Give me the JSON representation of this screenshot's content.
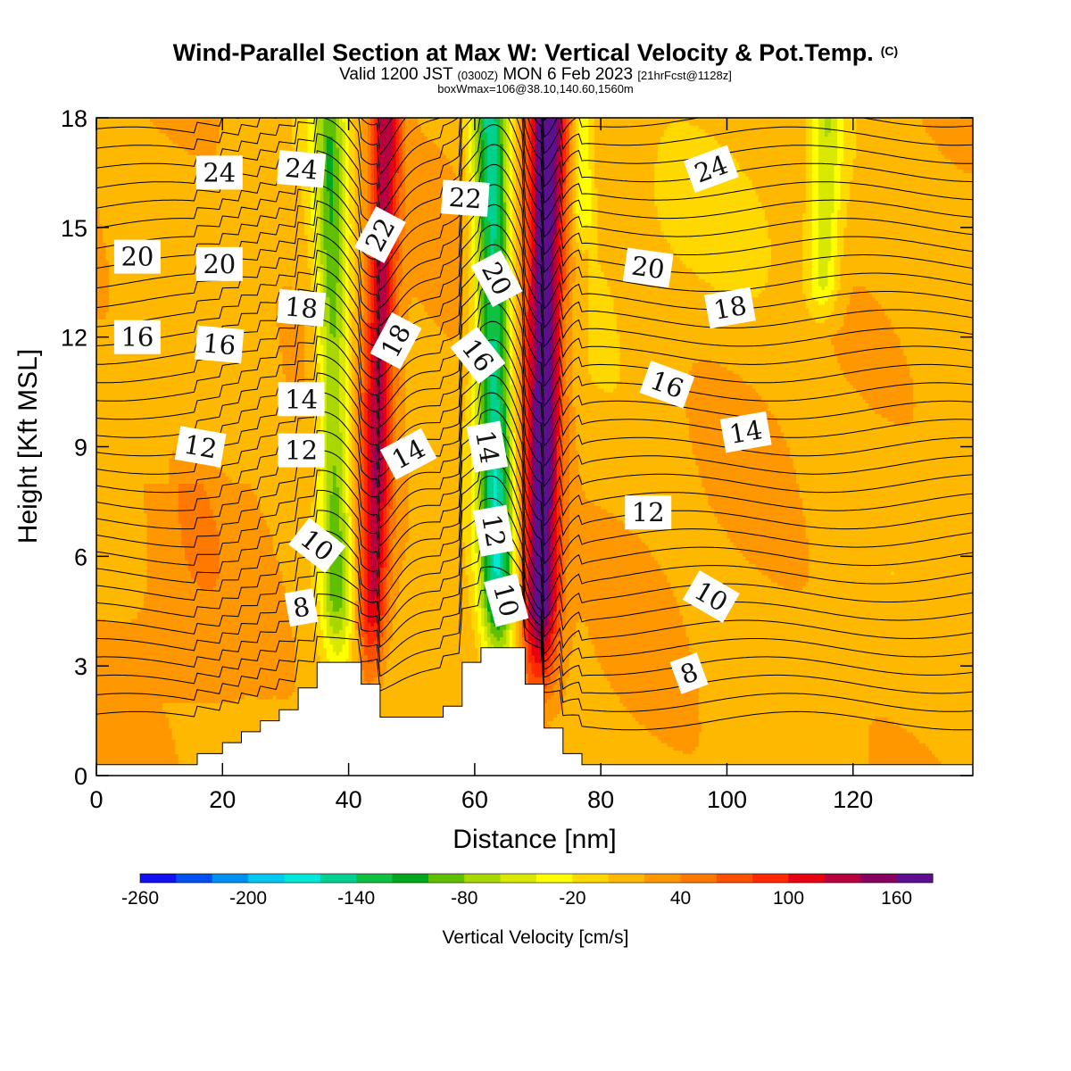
{
  "title": {
    "main": "Wind-Parallel Section at Max W: Vertical Velocity & Pot.Temp.",
    "mark": "(C)",
    "valid_prefix": "Valid 1200 JST",
    "utc": "(0300Z)",
    "date": "MON 6 Feb 2023",
    "forecast": "[21hrFcst@1128z]",
    "box": "boxWmax=106@38.10,140.60,1560m"
  },
  "chart_data": {
    "type": "heatmap",
    "xlabel": "Distance [nm]",
    "ylabel": "Height [Kft MSL]",
    "xlim": [
      0,
      139
    ],
    "ylim": [
      0,
      18
    ],
    "xticks": [
      0,
      20,
      40,
      60,
      80,
      100,
      120
    ],
    "yticks": [
      0,
      3,
      6,
      9,
      12,
      15,
      18
    ],
    "colorbar": {
      "title": "Vertical Velocity [cm/s]",
      "labels": [
        "-260",
        "-200",
        "-140",
        "-80",
        "-20",
        "40",
        "100",
        "160"
      ],
      "label_values": [
        -260,
        -200,
        -140,
        -80,
        -20,
        40,
        100,
        160
      ],
      "min": -260,
      "max": 180,
      "step": 20,
      "colors": [
        "#1010f0",
        "#0050f0",
        "#0090f0",
        "#00c8f0",
        "#00e8d8",
        "#00d090",
        "#10c040",
        "#00a820",
        "#60c000",
        "#a8d800",
        "#d8e800",
        "#ffff00",
        "#ffd800",
        "#ffb800",
        "#ff9800",
        "#ff7800",
        "#ff5000",
        "#ff2800",
        "#e80010",
        "#b80040",
        "#880060",
        "#5c1090"
      ]
    },
    "terrain": [
      [
        0,
        0.3
      ],
      [
        16,
        0.3
      ],
      [
        16,
        0.6
      ],
      [
        20,
        0.6
      ],
      [
        20,
        0.9
      ],
      [
        23,
        0.9
      ],
      [
        23,
        1.2
      ],
      [
        26,
        1.2
      ],
      [
        26,
        1.5
      ],
      [
        29,
        1.5
      ],
      [
        29,
        1.8
      ],
      [
        32,
        1.8
      ],
      [
        32,
        2.4
      ],
      [
        35,
        2.4
      ],
      [
        35,
        3.1
      ],
      [
        42,
        3.1
      ],
      [
        42,
        2.5
      ],
      [
        45,
        2.5
      ],
      [
        45,
        1.6
      ],
      [
        55,
        1.6
      ],
      [
        55,
        1.9
      ],
      [
        58,
        1.9
      ],
      [
        58,
        3.1
      ],
      [
        61,
        3.1
      ],
      [
        61,
        3.5
      ],
      [
        68,
        3.5
      ],
      [
        68,
        2.5
      ],
      [
        71,
        2.5
      ],
      [
        71,
        1.3
      ],
      [
        74,
        1.3
      ],
      [
        74,
        0.6
      ],
      [
        77,
        0.6
      ],
      [
        77,
        0.3
      ],
      [
        139,
        0.3
      ]
    ],
    "w_updrafts": [
      {
        "x_bottom": 43,
        "x_top": 46,
        "peak": 115,
        "width": 2.4
      },
      {
        "x_bottom": 70,
        "x_top": 71.5,
        "peak": 168,
        "width": 3.0
      }
    ],
    "w_downdrafts": [
      {
        "x_bottom": 38.5,
        "x_top": 37,
        "peak": -105,
        "width": 2.6
      },
      {
        "x_bottom": 64,
        "x_top": 62.5,
        "peak": -165,
        "width": 2.8
      }
    ],
    "w_weak_bands": [
      {
        "x_bottom": 113,
        "x_top": 116,
        "peak": -65,
        "width": 2.5,
        "y_from": 12
      },
      {
        "x_bottom": 77,
        "x_top": 77,
        "peak": -60,
        "width": 1.8,
        "y_from": 14
      }
    ],
    "theta_levels": [
      2,
      2.5,
      3,
      3.5,
      4,
      4.5,
      5,
      5.5,
      6,
      6.5,
      7,
      7.5,
      8,
      8.5,
      9,
      9.5,
      10,
      10.5,
      11,
      11.5,
      12,
      12.5,
      13,
      13.5,
      14,
      14.5,
      15,
      15.5,
      16,
      16.5,
      17,
      17.5,
      18,
      18.5,
      19,
      19.5,
      20,
      20.5,
      21,
      21.5,
      22,
      22.5,
      23,
      23.5,
      24,
      24.5,
      25,
      25.5
    ],
    "theta_labels": [
      {
        "text": "24",
        "x": 19.5,
        "y": 16.5,
        "rot": 0
      },
      {
        "text": "24",
        "x": 32.5,
        "y": 16.6,
        "rot": 5
      },
      {
        "text": "22",
        "x": 45,
        "y": 14.8,
        "rot": -62
      },
      {
        "text": "22",
        "x": 58.5,
        "y": 15.8,
        "rot": 4
      },
      {
        "text": "24",
        "x": 97.5,
        "y": 16.6,
        "rot": -20
      },
      {
        "text": "20",
        "x": 6.5,
        "y": 14.2,
        "rot": 0
      },
      {
        "text": "20",
        "x": 19.5,
        "y": 14.0,
        "rot": 0
      },
      {
        "text": "20",
        "x": 63.5,
        "y": 13.6,
        "rot": 62
      },
      {
        "text": "20",
        "x": 87.5,
        "y": 13.9,
        "rot": 8
      },
      {
        "text": "18",
        "x": 32.5,
        "y": 12.8,
        "rot": 5
      },
      {
        "text": "18",
        "x": 47.5,
        "y": 11.9,
        "rot": -62
      },
      {
        "text": "18",
        "x": 100.5,
        "y": 12.8,
        "rot": -10
      },
      {
        "text": "16",
        "x": 6.5,
        "y": 12.0,
        "rot": 0
      },
      {
        "text": "16",
        "x": 19.5,
        "y": 11.8,
        "rot": 5
      },
      {
        "text": "16",
        "x": 60.5,
        "y": 11.5,
        "rot": 52
      },
      {
        "text": "16",
        "x": 90.5,
        "y": 10.7,
        "rot": 20
      },
      {
        "text": "14",
        "x": 32.5,
        "y": 10.3,
        "rot": 0
      },
      {
        "text": "14",
        "x": 49.5,
        "y": 8.8,
        "rot": -28
      },
      {
        "text": "14",
        "x": 62,
        "y": 9.0,
        "rot": 80
      },
      {
        "text": "14",
        "x": 103,
        "y": 9.4,
        "rot": -10
      },
      {
        "text": "12",
        "x": 16.5,
        "y": 9.0,
        "rot": 10
      },
      {
        "text": "12",
        "x": 32.5,
        "y": 8.9,
        "rot": 0
      },
      {
        "text": "12",
        "x": 63,
        "y": 6.7,
        "rot": 80
      },
      {
        "text": "12",
        "x": 87.5,
        "y": 7.2,
        "rot": 0
      },
      {
        "text": "10",
        "x": 35,
        "y": 6.3,
        "rot": 38
      },
      {
        "text": "10",
        "x": 65,
        "y": 4.8,
        "rot": 75
      },
      {
        "text": "10",
        "x": 97.5,
        "y": 4.9,
        "rot": 30
      },
      {
        "text": "8",
        "x": 32.5,
        "y": 4.6,
        "rot": -10
      },
      {
        "text": "8",
        "x": 94,
        "y": 2.8,
        "rot": -20
      }
    ]
  }
}
